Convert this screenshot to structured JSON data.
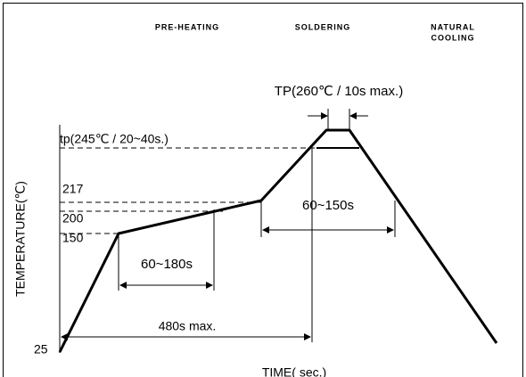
{
  "phases": [
    "PRE-HEATING",
    "SOLDERING",
    "NATURAL",
    "COOLING"
  ],
  "peak_label": "TP(260℃ / 10s max.)",
  "tp_label": "tp(245℃ / 20~40s.)",
  "y_axis_label": "TEMPERATURE(℃)",
  "x_axis_label": "TIME( sec.)",
  "levels": [
    "217",
    "200",
    "150",
    "25"
  ],
  "intervals": [
    "60~180s",
    "60~150s",
    "480s max."
  ]
}
